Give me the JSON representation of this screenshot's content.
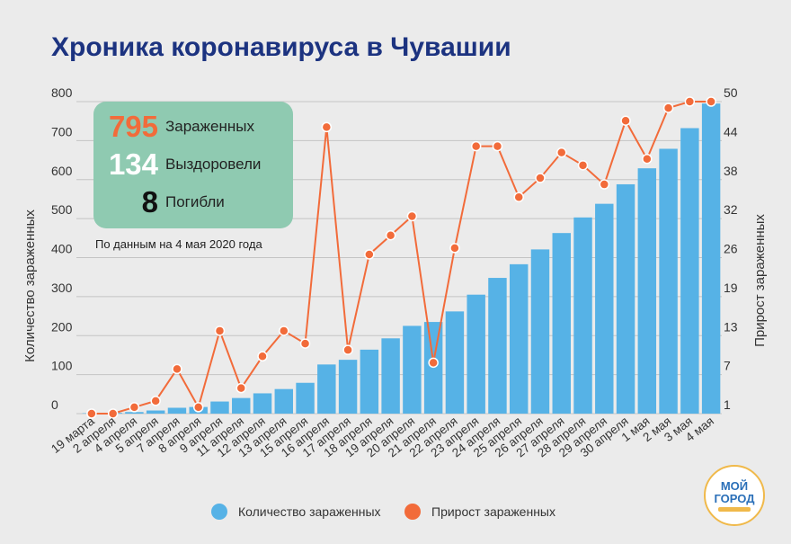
{
  "title": "Хроника коронавируса в Чувашии",
  "stats": {
    "infected": {
      "value": "795",
      "label": "Зараженных",
      "color": "#f26b3a"
    },
    "recovered": {
      "value": "134",
      "label": "Выздоровели",
      "color": "#ffffff"
    },
    "died": {
      "value": "8",
      "label": "Погибли",
      "color": "#111111"
    }
  },
  "note": "По данным на 4 мая 2020 года",
  "legend": {
    "bars": "Количество зараженных",
    "line": "Прирост зараженных"
  },
  "logo": {
    "line1": "МОЙ",
    "line2": "ГОРОД"
  },
  "colors": {
    "bar": "#56b2e6",
    "line": "#f26b3a",
    "title": "#1c3380",
    "box": "#8fcab1"
  },
  "chart_data": {
    "type": "bar",
    "categories": [
      "19 марта",
      "2 апреля",
      "4 апреля",
      "5 апреля",
      "7 апреля",
      "8 апреля",
      "9 апреля",
      "11 апреля",
      "12 апреля",
      "13 апреля",
      "15 апреля",
      "16 апреля",
      "17 апреля",
      "18 апреля",
      "19 апреля",
      "20 апреля",
      "21 апреля",
      "22 апреля",
      "23 апреля",
      "24 апреля",
      "25 апреля",
      "26 апреля",
      "27 апреля",
      "28 апреля",
      "29 апреля",
      "30 апреля",
      "1 мая",
      "2 мая",
      "3 мая",
      "4 мая"
    ],
    "ylabel": "Количество зараженных",
    "y2label": "Прирост зараженных",
    "yticks": [
      "0",
      "100",
      "200",
      "300",
      "400",
      "500",
      "600",
      "700",
      "800"
    ],
    "y2ticks": [
      "1",
      "7",
      "13",
      "19",
      "26",
      "32",
      "38",
      "44",
      "50"
    ],
    "ylim": [
      0,
      800
    ],
    "y2lim": [
      1,
      50
    ],
    "grid": true,
    "series": [
      {
        "name": "Количество зараженных",
        "type": "bar",
        "axis": "left",
        "values": [
          1,
          2,
          4,
          8,
          15,
          17,
          31,
          40,
          52,
          63,
          79,
          126,
          138,
          164,
          193,
          225,
          235,
          262,
          305,
          348,
          383,
          421,
          463,
          503,
          538,
          588,
          629,
          679,
          732,
          795
        ]
      },
      {
        "name": "Прирост зараженных",
        "type": "line",
        "axis": "right",
        "values": [
          1,
          1,
          2,
          3,
          8,
          2,
          14,
          5,
          10,
          14,
          12,
          46,
          11,
          26,
          29,
          32,
          9,
          27,
          43,
          43,
          35,
          38,
          42,
          40,
          37,
          47,
          41,
          49,
          50,
          50
        ]
      }
    ]
  }
}
